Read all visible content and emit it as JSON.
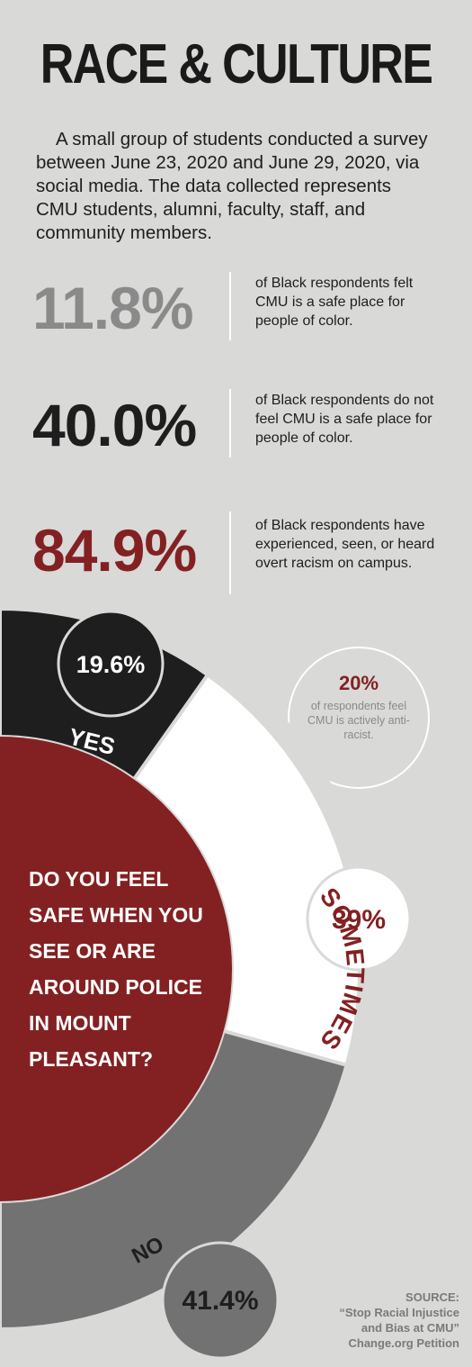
{
  "header": {
    "title": "RACE & CULTURE",
    "intro": "A small group of students conducted a survey between June 23, 2020 and June 29, 2020, via social media. The data collected represents CMU students, alumni, faculty, staff, and community members."
  },
  "stats": [
    {
      "value": "11.8%",
      "text": "of Black respondents felt CMU is a safe place for people of color.",
      "color": "#8a8a8a"
    },
    {
      "value": "40.0%",
      "text": "of Black respondents do not feel CMU is a safe place for people of color.",
      "color": "#1e1e1e"
    },
    {
      "value": "84.9%",
      "text": "of Black respondents have experienced, seen, or heard overt racism on campus.",
      "color": "#832122"
    }
  ],
  "callout": {
    "value": "20%",
    "text": "of respondents feel CMU is actively anti-racist."
  },
  "chart_data": {
    "type": "pie",
    "title": "DO YOU FEEL SAFE WHEN YOU SEE OR ARE AROUND POLICE IN MOUNT PLEASANT?",
    "slices": [
      {
        "label": "YES",
        "value": 19.6,
        "display": "19.6%",
        "color": "#1e1e1e"
      },
      {
        "label": "SOMETIMES",
        "value": 39,
        "display": "39%",
        "color": "#ffffff"
      },
      {
        "label": "NO",
        "value": 41.4,
        "display": "41.4%",
        "color": "#727272"
      }
    ]
  },
  "colors": {
    "background": "#d9d9d7",
    "accent": "#832122",
    "dark": "#1e1e1e",
    "gray": "#8a8a8a"
  },
  "source": {
    "label": "SOURCE:",
    "line1": "“Stop Racial Injustice",
    "line2": "and Bias at CMU”",
    "line3": "Change.org Petition"
  }
}
